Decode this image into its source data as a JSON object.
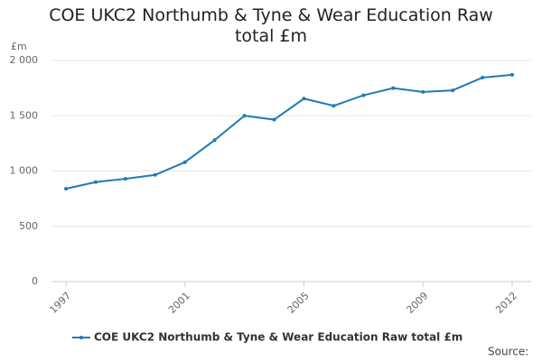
{
  "chart_data": {
    "type": "line",
    "title": "COE UKC2 Northumb & Tyne & Wear Education Raw total £m",
    "y_label": "£m",
    "source": "Source:",
    "x": [
      1997,
      1998,
      1999,
      2000,
      2001,
      2002,
      2003,
      2004,
      2005,
      2006,
      2007,
      2008,
      2009,
      2010,
      2011,
      2012
    ],
    "series": [
      {
        "name": "COE UKC2 Northumb & Tyne & Wear Education Raw total £m",
        "color": "#1f7bb6",
        "values": [
          840,
          900,
          930,
          965,
          1080,
          1280,
          1500,
          1465,
          1655,
          1590,
          1685,
          1750,
          1715,
          1730,
          1845,
          1870
        ]
      }
    ],
    "xlim": [
      1997,
      2012
    ],
    "xticks": [
      1997,
      2001,
      2005,
      2009,
      2012
    ],
    "ylim": [
      0,
      2000
    ],
    "yticks": [
      0,
      500,
      {
        "value": 1000,
        "label": "1 000"
      },
      {
        "value": 1500,
        "label": "1 500"
      },
      {
        "value": 2000,
        "label": "2 000"
      }
    ],
    "grid": true
  }
}
